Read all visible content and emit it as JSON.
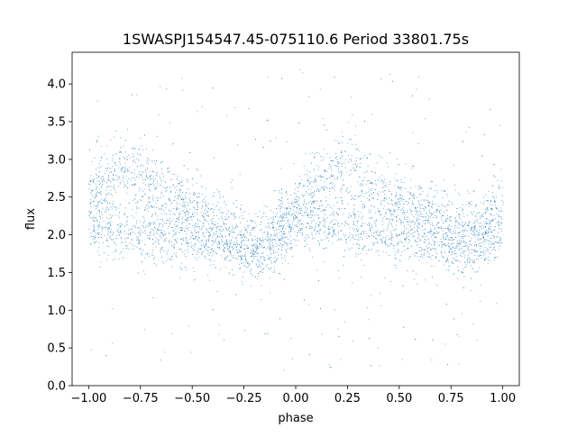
{
  "chart_data": {
    "type": "scatter",
    "title": "1SWASPJ154547.45-075110.6 Period 33801.75s",
    "xlabel": "phase",
    "ylabel": "flux",
    "xlim": [
      -1.08,
      1.08
    ],
    "ylim": [
      0.0,
      4.42
    ],
    "xticks": [
      -1.0,
      -0.75,
      -0.5,
      -0.25,
      0.0,
      0.25,
      0.5,
      0.75,
      1.0
    ],
    "xtick_labels": [
      "−1.00",
      "−0.75",
      "−0.50",
      "−0.25",
      "0.00",
      "0.25",
      "0.50",
      "0.75",
      "1.00"
    ],
    "yticks": [
      0.0,
      0.5,
      1.0,
      1.5,
      2.0,
      2.5,
      3.0,
      3.5,
      4.0
    ],
    "ytick_labels": [
      "0.0",
      "0.5",
      "1.0",
      "1.5",
      "2.0",
      "2.5",
      "3.0",
      "3.5",
      "4.0"
    ],
    "grid": false,
    "legend": "none",
    "marker_color": "#1f77b4",
    "series": [
      {
        "phase": [
          -1.0,
          -0.95,
          -0.9,
          -0.85,
          -0.8,
          -0.75,
          -0.7,
          -0.65,
          -0.6,
          -0.55,
          -0.5,
          -0.45,
          -0.4,
          -0.35,
          -0.3,
          -0.25,
          -0.2,
          -0.15,
          -0.1,
          -0.05,
          0.0,
          0.05,
          0.1,
          0.15,
          0.2,
          0.25,
          0.3,
          0.35,
          0.4,
          0.45,
          0.5,
          0.55,
          0.6,
          0.65,
          0.7,
          0.75,
          0.8,
          0.85,
          0.9,
          0.95,
          1.0
        ],
        "upper_branch_flux": [
          2.5,
          2.65,
          2.78,
          2.85,
          2.88,
          2.82,
          2.72,
          2.6,
          2.5,
          2.42,
          2.35,
          2.28,
          2.2,
          2.1,
          2.0,
          1.92,
          1.85,
          1.92,
          2.05,
          2.2,
          2.32,
          2.5,
          2.68,
          2.8,
          2.86,
          2.84,
          2.76,
          2.66,
          2.56,
          2.48,
          2.42,
          2.38,
          2.33,
          2.28,
          2.22,
          2.16,
          2.1,
          2.08,
          2.12,
          2.25,
          2.38
        ],
        "lower_branch_flux": [
          2.15,
          2.12,
          2.1,
          2.08,
          2.06,
          2.04,
          2.02,
          2.0,
          1.98,
          1.96,
          1.95,
          1.93,
          1.9,
          1.86,
          1.8,
          1.76,
          1.74,
          1.8,
          1.95,
          2.1,
          2.2,
          2.18,
          2.15,
          2.12,
          2.1,
          2.08,
          2.06,
          2.04,
          2.02,
          2.0,
          1.98,
          1.96,
          1.94,
          1.92,
          1.88,
          1.84,
          1.8,
          1.8,
          1.88,
          2.0,
          2.12
        ],
        "scatter_sigma": 0.22
      }
    ]
  }
}
